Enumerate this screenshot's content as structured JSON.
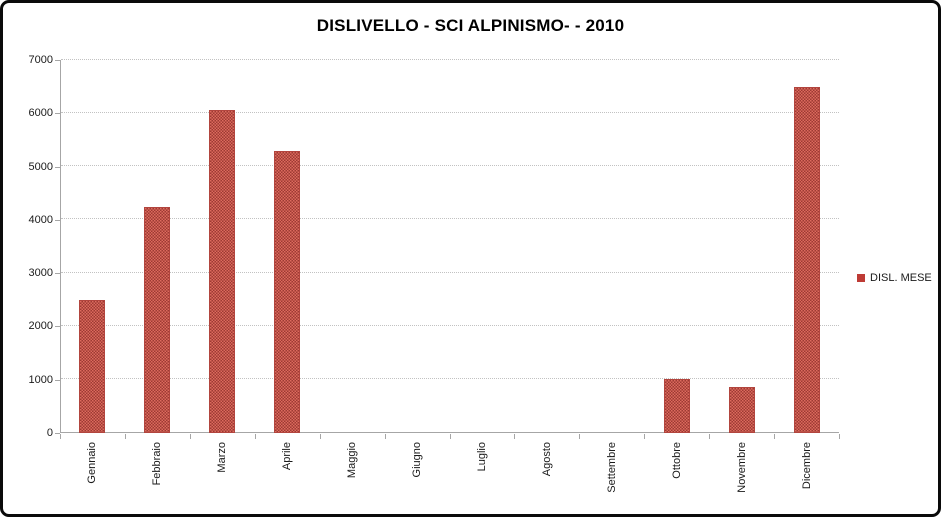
{
  "chart_data": {
    "type": "bar",
    "title": "DISLIVELLO - SCI ALPINISMO- - 2010",
    "categories": [
      "Gennaio",
      "Febbraio",
      "Marzo",
      "Aprile",
      "Maggio",
      "Giugno",
      "Luglio",
      "Agosto",
      "Settembre",
      "Ottobre",
      "Novembre",
      "Dicembre"
    ],
    "series": [
      {
        "name": "DISL. MESE",
        "values": [
          2500,
          4250,
          6060,
          5300,
          0,
          0,
          0,
          0,
          0,
          1020,
          860,
          6500
        ]
      }
    ],
    "xlabel": "",
    "ylabel": "",
    "ylim": [
      0,
      7000
    ],
    "ytick_step": 1000,
    "ytick_labels": [
      "0",
      "1000",
      "2000",
      "3000",
      "4000",
      "5000",
      "6000",
      "7000"
    ],
    "grid": true,
    "legend_position": "right",
    "colors": {
      "bar_base": "#c0504d",
      "bar_pattern_light": "#dd6a5e",
      "bar_pattern_dark": "#9c3a33",
      "bar_border": "#b2453e",
      "legend_marker": "#be3b35",
      "gridline": "#c2c2c2",
      "axis": "#a6a6a6",
      "text": "#1a1a1a",
      "frame_border": "#0a0a0a"
    }
  }
}
